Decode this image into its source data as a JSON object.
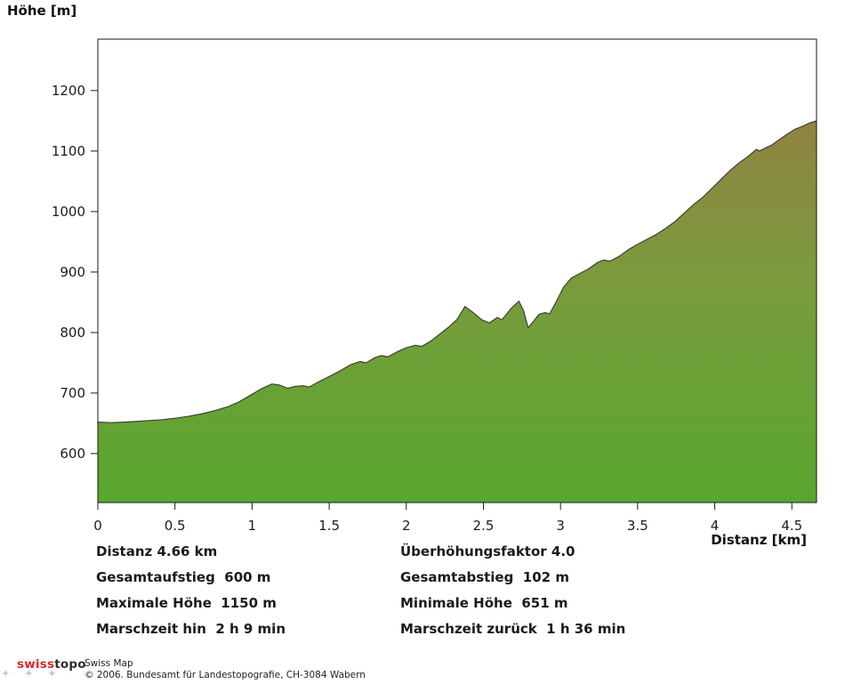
{
  "title": "Höhe [m]",
  "chart_data": {
    "type": "area",
    "title": "Höhe [m]",
    "xlabel": "Distanz [km]",
    "ylabel": "Höhe [m]",
    "xlim": [
      0,
      4.66
    ],
    "ylim": [
      519,
      1285
    ],
    "grid": false,
    "legend_position": "none",
    "x_ticks": [
      {
        "value": 0,
        "label": "0"
      },
      {
        "value": 0.5,
        "label": "0.5"
      },
      {
        "value": 1,
        "label": "1"
      },
      {
        "value": 1.5,
        "label": "1.5"
      },
      {
        "value": 2,
        "label": "2"
      },
      {
        "value": 2.5,
        "label": "2.5"
      },
      {
        "value": 3,
        "label": "3"
      },
      {
        "value": 3.5,
        "label": "3.5"
      },
      {
        "value": 4,
        "label": "4"
      },
      {
        "value": 4.5,
        "label": "4.5"
      }
    ],
    "y_ticks": [
      {
        "value": 600,
        "label": "600"
      },
      {
        "value": 700,
        "label": "700"
      },
      {
        "value": 800,
        "label": "800"
      },
      {
        "value": 900,
        "label": "900"
      },
      {
        "value": 1000,
        "label": "1000"
      },
      {
        "value": 1100,
        "label": "1100"
      },
      {
        "value": 1200,
        "label": "1200"
      }
    ],
    "series": [
      {
        "name": "elevation-profile",
        "x_unit": "km",
        "y_unit": "m",
        "points": [
          [
            0.0,
            652
          ],
          [
            0.08,
            651
          ],
          [
            0.18,
            652
          ],
          [
            0.3,
            654
          ],
          [
            0.42,
            656
          ],
          [
            0.52,
            659
          ],
          [
            0.6,
            662
          ],
          [
            0.68,
            666
          ],
          [
            0.76,
            671
          ],
          [
            0.84,
            677
          ],
          [
            0.92,
            686
          ],
          [
            1.0,
            698
          ],
          [
            1.06,
            707
          ],
          [
            1.13,
            715
          ],
          [
            1.18,
            713
          ],
          [
            1.23,
            708
          ],
          [
            1.28,
            711
          ],
          [
            1.33,
            712
          ],
          [
            1.37,
            710
          ],
          [
            1.45,
            721
          ],
          [
            1.52,
            730
          ],
          [
            1.58,
            738
          ],
          [
            1.64,
            747
          ],
          [
            1.7,
            752
          ],
          [
            1.74,
            750
          ],
          [
            1.8,
            759
          ],
          [
            1.84,
            762
          ],
          [
            1.88,
            760
          ],
          [
            1.94,
            768
          ],
          [
            2.0,
            775
          ],
          [
            2.06,
            779
          ],
          [
            2.1,
            777
          ],
          [
            2.16,
            786
          ],
          [
            2.22,
            798
          ],
          [
            2.28,
            810
          ],
          [
            2.33,
            822
          ],
          [
            2.38,
            843
          ],
          [
            2.43,
            834
          ],
          [
            2.49,
            821
          ],
          [
            2.54,
            816
          ],
          [
            2.59,
            825
          ],
          [
            2.62,
            821
          ],
          [
            2.68,
            840
          ],
          [
            2.73,
            852
          ],
          [
            2.76,
            836
          ],
          [
            2.79,
            808
          ],
          [
            2.82,
            817
          ],
          [
            2.86,
            830
          ],
          [
            2.9,
            833
          ],
          [
            2.93,
            831
          ],
          [
            2.97,
            850
          ],
          [
            3.02,
            875
          ],
          [
            3.07,
            890
          ],
          [
            3.12,
            897
          ],
          [
            3.18,
            905
          ],
          [
            3.24,
            916
          ],
          [
            3.28,
            920
          ],
          [
            3.32,
            918
          ],
          [
            3.38,
            926
          ],
          [
            3.44,
            937
          ],
          [
            3.5,
            946
          ],
          [
            3.56,
            954
          ],
          [
            3.62,
            962
          ],
          [
            3.68,
            972
          ],
          [
            3.74,
            983
          ],
          [
            3.8,
            997
          ],
          [
            3.86,
            1011
          ],
          [
            3.92,
            1023
          ],
          [
            3.98,
            1038
          ],
          [
            4.04,
            1053
          ],
          [
            4.1,
            1068
          ],
          [
            4.16,
            1081
          ],
          [
            4.22,
            1092
          ],
          [
            4.27,
            1103
          ],
          [
            4.29,
            1100
          ],
          [
            4.32,
            1104
          ],
          [
            4.37,
            1110
          ],
          [
            4.42,
            1119
          ],
          [
            4.47,
            1128
          ],
          [
            4.52,
            1136
          ],
          [
            4.57,
            1141
          ],
          [
            4.62,
            1147
          ],
          [
            4.66,
            1150
          ]
        ]
      }
    ],
    "colors": {
      "fill_bottom": "#58a82e",
      "fill_mid": "#7b9a3d",
      "fill_top": "#9c7643",
      "profile_stroke": "#3f3f33",
      "axis": "#1a1a1a",
      "tick_text": "#1c1c1c"
    }
  },
  "stats": {
    "left": [
      "Distanz 4.66 km",
      "Gesamtaufstieg  600 m",
      "Maximale Höhe  1150 m",
      "Marschzeit hin  2 h 9 min"
    ],
    "right": [
      "Überhöhungsfaktor 4.0",
      "Gesamtabstieg  102 m",
      "Minimale Höhe  651 m",
      "Marschzeit zurück  1 h 36 min"
    ]
  },
  "footer": {
    "logo_swiss": "swiss",
    "logo_topo": "topo",
    "plus_marks": "+    +    +",
    "product": "Swiss Map",
    "copyright": "© 2006. Bundesamt für Landestopografie, CH-3084 Wabern"
  }
}
